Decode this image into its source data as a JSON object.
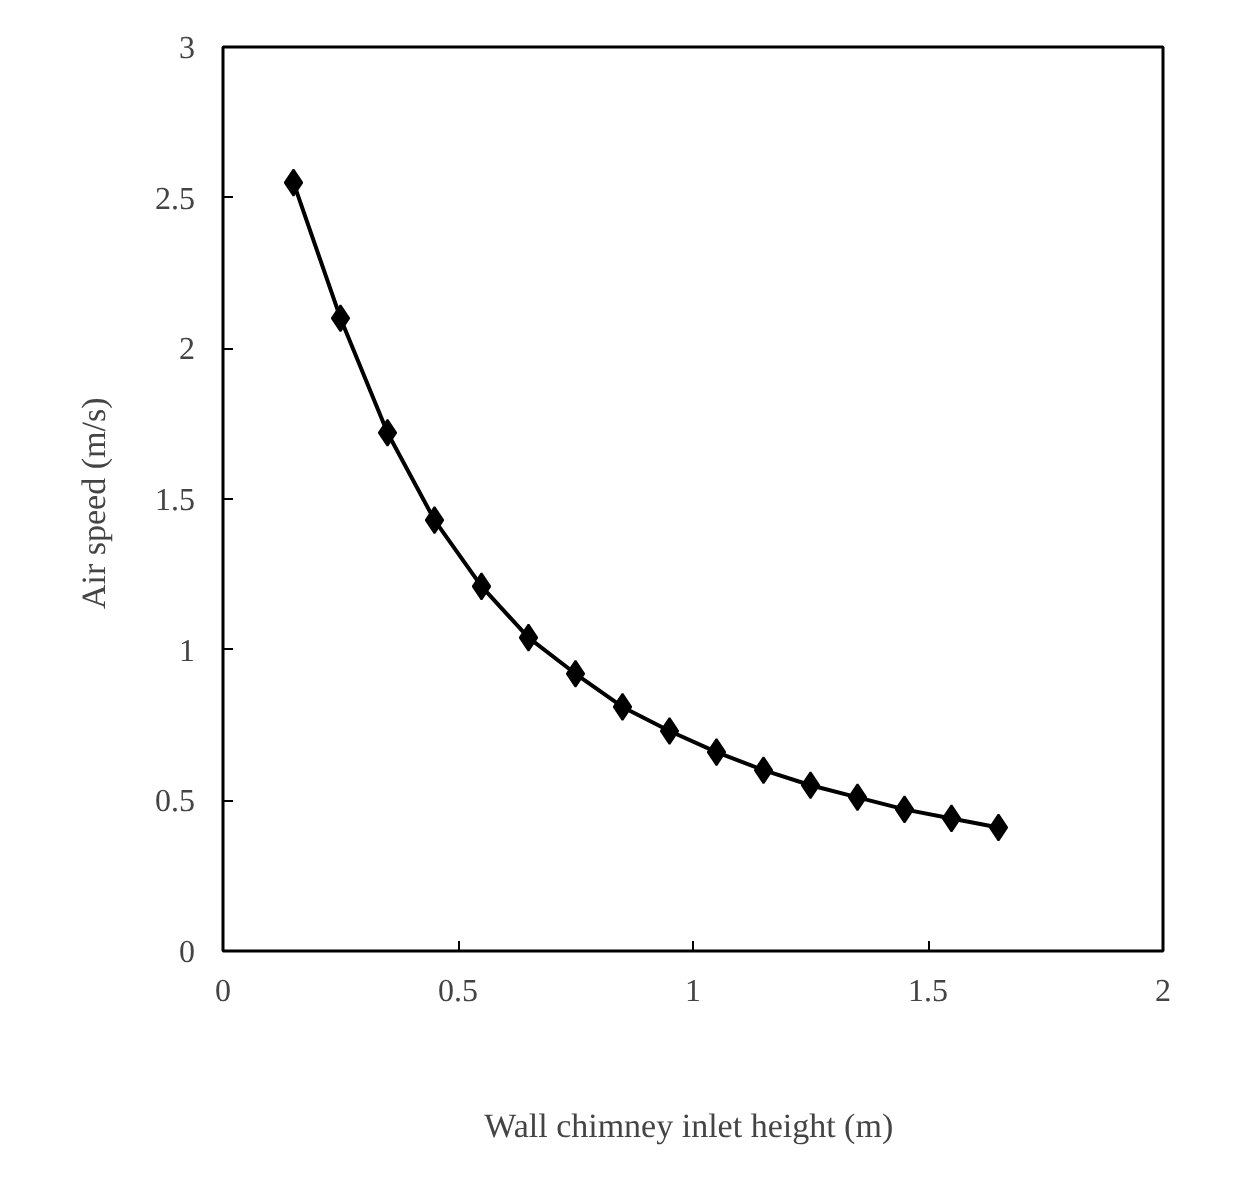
{
  "chart_data": {
    "type": "line",
    "xlabel": "Wall chimney inlet height  (m)",
    "ylabel": "Air speed  (m/s)",
    "x": [
      0.15,
      0.25,
      0.35,
      0.45,
      0.55,
      0.65,
      0.75,
      0.85,
      0.95,
      1.05,
      1.15,
      1.25,
      1.35,
      1.45,
      1.55,
      1.65
    ],
    "series": [
      {
        "color": "#000000",
        "values": [
          2.55,
          2.1,
          1.72,
          1.43,
          1.21,
          1.04,
          0.92,
          0.81,
          0.73,
          0.66,
          0.6,
          0.55,
          0.51,
          0.47,
          0.44,
          0.41
        ]
      }
    ],
    "xlim": [
      0,
      2
    ],
    "ylim": [
      0,
      3
    ],
    "xticks": [
      0,
      0.5,
      1,
      1.5,
      2
    ],
    "yticks": [
      0,
      0.5,
      1,
      1.5,
      2,
      2.5,
      3
    ],
    "grid": false,
    "marker": "diamond",
    "line_style": "solid"
  }
}
